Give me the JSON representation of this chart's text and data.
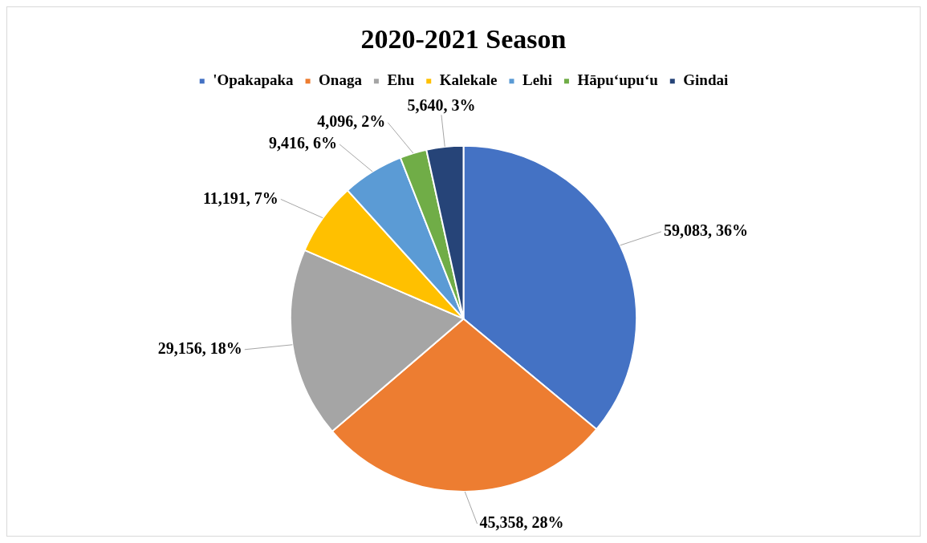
{
  "chart_data": {
    "type": "pie",
    "title": "2020-2021 Season",
    "categories": [
      "'Opakapaka",
      "Onaga",
      "Ehu",
      "Kalekale",
      "Lehi",
      "Hāpu‘upu‘u",
      "Gindai"
    ],
    "values": [
      59083,
      45358,
      29156,
      11191,
      9416,
      4096,
      5640
    ],
    "colors": [
      "#4472c4",
      "#ed7d31",
      "#a5a5a5",
      "#ffc000",
      "#5b9bd5",
      "#70ad47",
      "#264478"
    ],
    "value_labels": [
      "59,083, 36%",
      "45,358, 28%",
      "29,156, 18%",
      "11,191, 7%",
      "9,416, 6%",
      "4,096, 2%",
      "5,640, 3%"
    ],
    "legend": "top"
  }
}
